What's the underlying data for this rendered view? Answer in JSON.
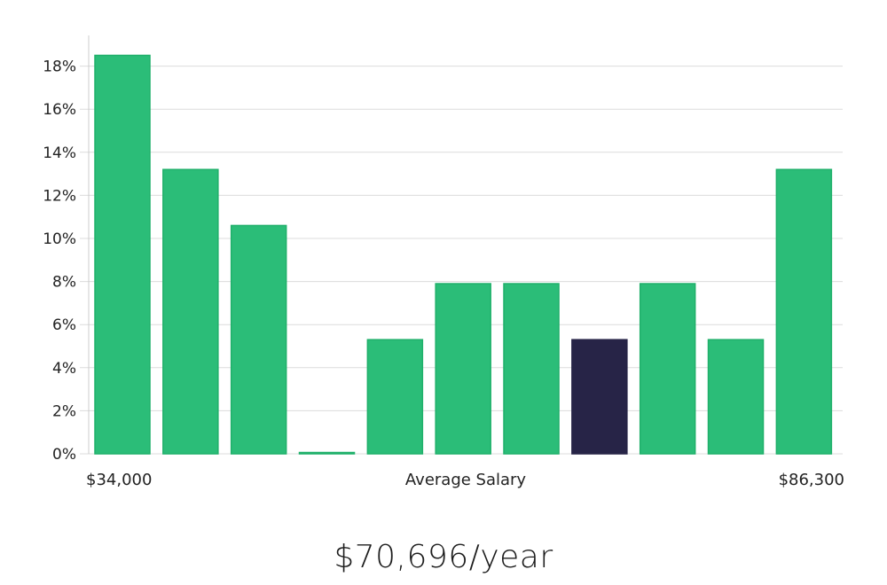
{
  "chart_data": {
    "type": "bar",
    "categories": [
      "1",
      "2",
      "3",
      "4",
      "5",
      "6",
      "7",
      "8",
      "9",
      "10",
      "11"
    ],
    "values": [
      18.5,
      13.2,
      10.6,
      0,
      5.3,
      7.9,
      7.9,
      5.3,
      7.9,
      5.3,
      13.2
    ],
    "highlight_index": 7,
    "y_ticks": [
      "0%",
      "2%",
      "4%",
      "6%",
      "8%",
      "10%",
      "12%",
      "14%",
      "16%",
      "18%"
    ],
    "ylim": [
      0,
      19.5
    ],
    "grid": true,
    "x_min_label": "$34,000",
    "x_center_label": "Average Salary",
    "x_max_label": "$86,300",
    "colors": {
      "bar": "#2bbd78",
      "bar_stroke": "#1fb06a",
      "highlight": "#272447",
      "grid": "#dcdcdc"
    }
  },
  "salary_display": "$70,696/year"
}
